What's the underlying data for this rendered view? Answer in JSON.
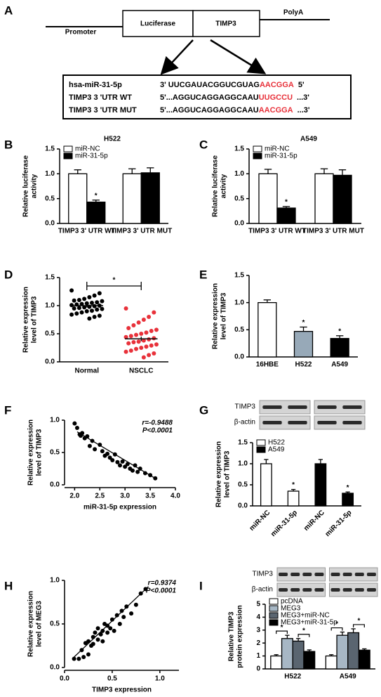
{
  "diagram": {
    "panel_label": "A",
    "promoter": "Promoter",
    "luciferase": "Luciferase",
    "gene": "TIMP3",
    "polya": "PolyA",
    "sequences": [
      {
        "name": "hsa-miR-31-5p",
        "seq": "3' UUCGAUACGGUCGUAG",
        "highlight": "AACGGA",
        "end": "5'"
      },
      {
        "name": "TIMP3 3 'UTR WT",
        "seq": "5'...AGGUCAGGAGGCAAU",
        "highlight": "UUGCCU",
        "end": "...3'"
      },
      {
        "name": "TIMP3 3 'UTR MUT",
        "seq": "5'...AGGUCAGGAGGCAAU",
        "highlight": "AACGGA",
        "end": "...3'"
      }
    ]
  },
  "chart_data": [
    {
      "type": "bar",
      "panel_label": "B",
      "title": "H522",
      "ylabel": [
        "Relative  luciferase",
        "activity"
      ],
      "categories": [
        "TIMP3 3' UTR WT",
        "TIMP3 3' UTR MUT"
      ],
      "series": [
        {
          "name": "miR-NC",
          "color": "#ffffff",
          "values": [
            1.0,
            1.0
          ],
          "errors": [
            0.08,
            0.1
          ]
        },
        {
          "name": "miR-31-5p",
          "color": "#000000",
          "values": [
            0.43,
            1.02
          ],
          "errors": [
            0.04,
            0.1
          ],
          "significance": [
            "*",
            null
          ]
        }
      ],
      "ylim": [
        0,
        1.5
      ],
      "yticks": [
        {
          "value": 0,
          "label": "0.0"
        },
        0.5,
        {
          "value": 1,
          "label": "1.0"
        },
        1.5
      ]
    },
    {
      "type": "bar",
      "panel_label": "C",
      "title": "A549",
      "ylabel": [
        "Relative  luciferase",
        "activity"
      ],
      "categories": [
        "TIMP3 3' UTR WT",
        "TIMP3 3' UTR MUT"
      ],
      "series": [
        {
          "name": "miR-NC",
          "color": "#ffffff",
          "values": [
            1.0,
            1.0
          ],
          "errors": [
            0.09,
            0.1
          ]
        },
        {
          "name": "miR-31-5p",
          "color": "#000000",
          "values": [
            0.31,
            0.97
          ],
          "errors": [
            0.03,
            0.11
          ],
          "significance": [
            "*",
            null
          ]
        }
      ],
      "ylim": [
        0,
        1.5
      ],
      "yticks": [
        {
          "value": 0,
          "label": "0.0"
        },
        0.5,
        {
          "value": 1,
          "label": "1.0"
        },
        1.5
      ]
    },
    {
      "type": "strip",
      "panel_label": "D",
      "ylabel": [
        "Relative expression",
        "level of TIMP3"
      ],
      "categories": [
        "Normal",
        "NSCLC"
      ],
      "significance": "*",
      "series": [
        {
          "color": "#000000",
          "mean": 1.0,
          "error": 0.03,
          "values": [
            1.27,
            1.22,
            1.18,
            1.15,
            1.12,
            1.1,
            1.09,
            1.08,
            1.06,
            1.05,
            1.04,
            1.03,
            1.02,
            1.01,
            1.0,
            0.99,
            0.98,
            0.97,
            0.96,
            0.95,
            0.94,
            0.93,
            0.91,
            0.9,
            0.88,
            0.86,
            0.84,
            0.82,
            0.8,
            0.77
          ]
        },
        {
          "color": "#e8313a",
          "mean": 0.41,
          "error": 0.04,
          "values": [
            0.95,
            0.88,
            0.8,
            0.75,
            0.7,
            0.65,
            0.6,
            0.57,
            0.55,
            0.52,
            0.5,
            0.48,
            0.46,
            0.44,
            0.42,
            0.4,
            0.38,
            0.36,
            0.35,
            0.33,
            0.31,
            0.29,
            0.27,
            0.25,
            0.23,
            0.2,
            0.18,
            0.15,
            0.12,
            0.08
          ]
        }
      ],
      "ylim": [
        0,
        1.5
      ],
      "yticks": [
        {
          "value": 0,
          "label": "0.0"
        },
        0.5,
        {
          "value": 1,
          "label": "1.0"
        },
        1.5
      ]
    },
    {
      "type": "bar",
      "panel_label": "E",
      "ylabel": [
        "Relative expression",
        "level of TIMP3"
      ],
      "categories": [
        "16HBE",
        "H522",
        "A549"
      ],
      "values": [
        1.0,
        0.47,
        0.34
      ],
      "errors": [
        0.05,
        0.08,
        0.05
      ],
      "colors": [
        "#ffffff",
        "#97a9b8",
        "#000000"
      ],
      "significance": [
        null,
        "*",
        "*"
      ],
      "ylim": [
        0,
        1.5
      ],
      "yticks": [
        {
          "value": 0,
          "label": "0.0"
        },
        0.5,
        {
          "value": 1,
          "label": "1.0"
        },
        1.5
      ]
    },
    {
      "type": "scatter",
      "panel_label": "F",
      "ylabel": [
        "Relative expression",
        "level of TIMP3"
      ],
      "xlabel": "miR-31-5p expression",
      "stats": [
        "r=-0.9488",
        "P<0.0001"
      ],
      "color": "#000000",
      "x": [
        2.0,
        2.05,
        2.1,
        2.12,
        2.15,
        2.2,
        2.25,
        2.3,
        2.35,
        2.4,
        2.5,
        2.55,
        2.6,
        2.65,
        2.7,
        2.75,
        2.8,
        2.85,
        2.9,
        2.95,
        3.0,
        3.05,
        3.1,
        3.15,
        3.2,
        3.25,
        3.3,
        3.4,
        3.5,
        3.6
      ],
      "values": [
        0.95,
        0.88,
        0.78,
        0.76,
        0.8,
        0.72,
        0.75,
        0.6,
        0.68,
        0.55,
        0.62,
        0.52,
        0.45,
        0.48,
        0.42,
        0.38,
        0.47,
        0.35,
        0.3,
        0.36,
        0.28,
        0.32,
        0.25,
        0.22,
        0.3,
        0.2,
        0.25,
        0.18,
        0.15,
        0.1
      ],
      "fit": {
        "x": [
          2.05,
          3.6
        ],
        "values": [
          0.82,
          0.1
        ]
      },
      "xlim": [
        1.8,
        4.0
      ],
      "xticks": [
        {
          "value": 2,
          "label": "2.0"
        },
        2.5,
        {
          "value": 3,
          "label": "3.0"
        },
        3.5,
        {
          "value": 4,
          "label": "4.0"
        }
      ],
      "ylim": [
        0,
        1.0
      ],
      "yticks": [
        {
          "value": 0,
          "label": "0.0"
        },
        0.5,
        {
          "value": 1,
          "label": "1.0"
        }
      ]
    },
    {
      "type": "bar",
      "panel_label": "G",
      "ylabel": [
        "Relative expression",
        "level of TIMP3"
      ],
      "blot": [
        "TIMP3",
        "β-actin"
      ],
      "categories": [
        "miR-NC",
        "miR-31-5p",
        "miR-NC",
        "miR-31-5p"
      ],
      "series": [
        {
          "name": "H522",
          "color": "#ffffff",
          "values": [
            1.0,
            0.35,
            null,
            null
          ],
          "errors": [
            0.1,
            0.04,
            null,
            null
          ],
          "significance": [
            null,
            "*",
            null,
            null
          ]
        },
        {
          "name": "A549",
          "color": "#000000",
          "values": [
            null,
            null,
            1.0,
            0.3
          ],
          "errors": [
            null,
            null,
            0.1,
            0.03
          ],
          "significance": [
            null,
            null,
            null,
            "*"
          ]
        }
      ],
      "ylim": [
        0,
        1.5
      ],
      "yticks": [
        {
          "value": 0,
          "label": "0.0"
        },
        0.5,
        {
          "value": 1,
          "label": "1.0"
        },
        1.5
      ]
    },
    {
      "type": "scatter",
      "panel_label": "H",
      "ylabel": [
        "Relative expression",
        "level of MEG3"
      ],
      "xlabel": "TIMP3 expression",
      "stats": [
        "r=0.9374",
        "P<0.0001"
      ],
      "color": "#000000",
      "x": [
        0.1,
        0.15,
        0.18,
        0.2,
        0.22,
        0.25,
        0.25,
        0.28,
        0.3,
        0.3,
        0.32,
        0.35,
        0.35,
        0.38,
        0.4,
        0.4,
        0.42,
        0.45,
        0.45,
        0.48,
        0.5,
        0.52,
        0.55,
        0.58,
        0.6,
        0.62,
        0.65,
        0.7,
        0.75,
        0.8,
        0.85
      ],
      "values": [
        0.1,
        0.1,
        0.2,
        0.12,
        0.28,
        0.15,
        0.3,
        0.25,
        0.35,
        0.27,
        0.4,
        0.32,
        0.45,
        0.38,
        0.3,
        0.42,
        0.5,
        0.4,
        0.48,
        0.45,
        0.55,
        0.42,
        0.6,
        0.5,
        0.65,
        0.58,
        0.7,
        0.62,
        0.72,
        0.85,
        0.9
      ],
      "fit": {
        "x": [
          0.1,
          0.88
        ],
        "values": [
          0.12,
          0.93
        ]
      },
      "xlim": [
        0,
        1.2
      ],
      "xticks": [
        {
          "value": 0,
          "label": "0.0"
        },
        0.5,
        {
          "value": 1,
          "label": "1.0"
        }
      ],
      "ylim": [
        0,
        1.0
      ],
      "yticks": [
        {
          "value": 0,
          "label": "0.0"
        },
        0.5,
        {
          "value": 1,
          "label": "1.0"
        }
      ]
    },
    {
      "type": "bar",
      "panel_label": "I",
      "ylabel": [
        "Relative TIMP3",
        "protein expression"
      ],
      "blot": [
        "TIMP3",
        "β-actin"
      ],
      "categories": [
        "H522",
        "A549"
      ],
      "significance": [
        "*",
        "*",
        "*",
        "*"
      ],
      "series": [
        {
          "name": "pcDNA",
          "color": "#ffffff",
          "values": [
            1.0,
            1.0
          ],
          "errors": [
            0.1,
            0.1
          ]
        },
        {
          "name": "MEG3",
          "color": "#a7b7c5",
          "values": [
            2.35,
            2.6
          ],
          "errors": [
            0.25,
            0.25
          ]
        },
        {
          "name": "MEG3+miR-NC",
          "color": "#5a6570",
          "values": [
            2.15,
            2.8
          ],
          "errors": [
            0.2,
            0.3
          ]
        },
        {
          "name": "MEG3+miR-31-5p",
          "color": "#000000",
          "values": [
            1.35,
            1.45
          ],
          "errors": [
            0.12,
            0.1
          ]
        }
      ],
      "ylim": [
        0,
        5
      ],
      "yticks": [
        0,
        1,
        2,
        3,
        4,
        5
      ]
    }
  ]
}
